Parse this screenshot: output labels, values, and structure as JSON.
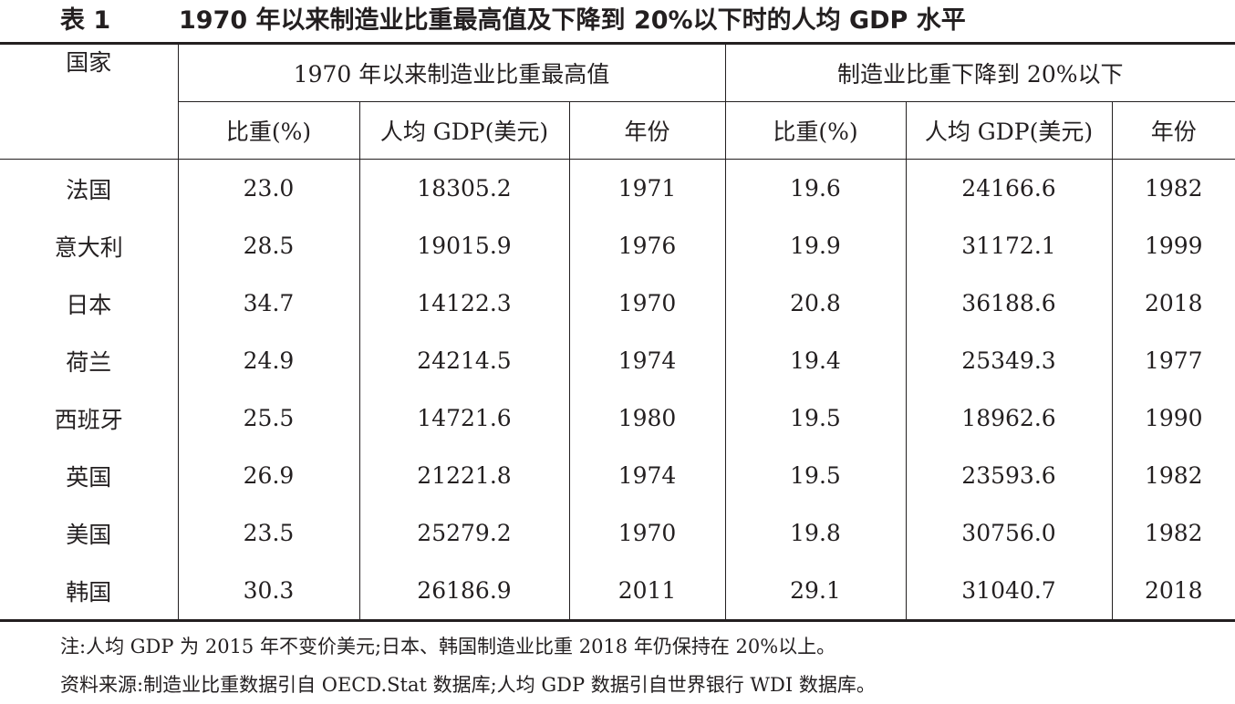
{
  "title": {
    "label": "表 1",
    "text": "1970 年以来制造业比重最高值及下降到 20%以下时的人均 GDP 水平"
  },
  "table": {
    "country_header": "国家",
    "group_headers": [
      "1970 年以来制造业比重最高值",
      "制造业比重下降到 20%以下"
    ],
    "sub_headers": [
      "比重(%)",
      "人均 GDP(美元)",
      "年份",
      "比重(%)",
      "人均 GDP(美元)",
      "年份"
    ],
    "rows": [
      {
        "country": "法国",
        "peak_share": "23.0",
        "peak_gdp": "18305.2",
        "peak_year": "1971",
        "below_share": "19.6",
        "below_gdp": "24166.6",
        "below_year": "1982"
      },
      {
        "country": "意大利",
        "peak_share": "28.5",
        "peak_gdp": "19015.9",
        "peak_year": "1976",
        "below_share": "19.9",
        "below_gdp": "31172.1",
        "below_year": "1999"
      },
      {
        "country": "日本",
        "peak_share": "34.7",
        "peak_gdp": "14122.3",
        "peak_year": "1970",
        "below_share": "20.8",
        "below_gdp": "36188.6",
        "below_year": "2018"
      },
      {
        "country": "荷兰",
        "peak_share": "24.9",
        "peak_gdp": "24214.5",
        "peak_year": "1974",
        "below_share": "19.4",
        "below_gdp": "25349.3",
        "below_year": "1977"
      },
      {
        "country": "西班牙",
        "peak_share": "25.5",
        "peak_gdp": "14721.6",
        "peak_year": "1980",
        "below_share": "19.5",
        "below_gdp": "18962.6",
        "below_year": "1990"
      },
      {
        "country": "英国",
        "peak_share": "26.9",
        "peak_gdp": "21221.8",
        "peak_year": "1974",
        "below_share": "19.5",
        "below_gdp": "23593.6",
        "below_year": "1982"
      },
      {
        "country": "美国",
        "peak_share": "23.5",
        "peak_gdp": "25279.2",
        "peak_year": "1970",
        "below_share": "19.8",
        "below_gdp": "30756.0",
        "below_year": "1982"
      },
      {
        "country": "韩国",
        "peak_share": "30.3",
        "peak_gdp": "26186.9",
        "peak_year": "2011",
        "below_share": "29.1",
        "below_gdp": "31040.7",
        "below_year": "2018"
      }
    ]
  },
  "notes": {
    "note": "注:人均 GDP 为 2015 年不变价美元;日本、韩国制造业比重 2018 年仍保持在 20%以上。",
    "source": "资料来源:制造业比重数据引自 OECD.Stat 数据库;人均 GDP 数据引自世界银行 WDI 数据库。"
  }
}
